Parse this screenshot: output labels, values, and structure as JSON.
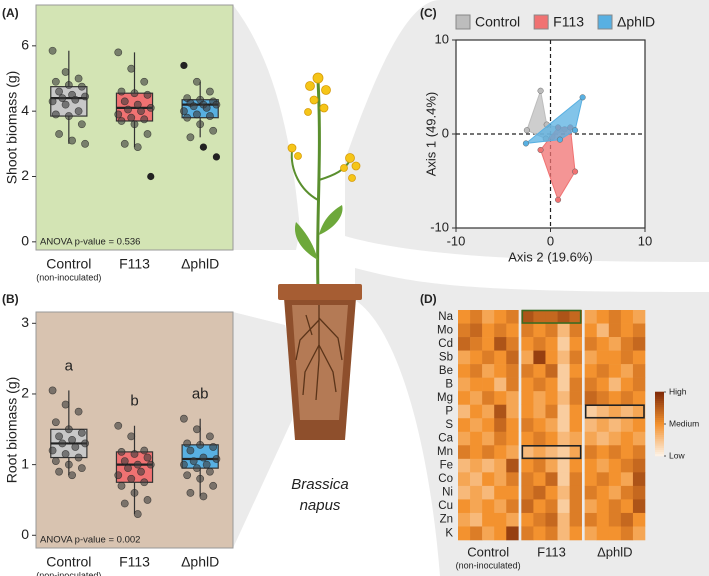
{
  "illustration": {
    "caption": [
      "Brassica",
      "napus"
    ]
  },
  "chart_data": [
    {
      "type": "box",
      "panel": "(A)",
      "ylabel": "Shoot biomass (g)",
      "categories": [
        "Control",
        "F113",
        "ΔphlD"
      ],
      "category_notes": [
        "(non-inoculated)",
        null,
        null
      ],
      "ylim": [
        -0.25,
        7.25
      ],
      "yticks": [
        0,
        2,
        4,
        6
      ],
      "background": "#d3e4b4",
      "annotation": "ANOVA p-value = 0.536",
      "boxes": [
        {
          "color": "#c8c8c8",
          "whisker_low": 3.0,
          "q1": 3.85,
          "median": 4.4,
          "q3": 4.75,
          "whisker_high": 5.85,
          "points": [
            5.85,
            5.2,
            5.0,
            4.9,
            4.8,
            4.75,
            4.6,
            4.5,
            4.45,
            4.4,
            4.35,
            4.3,
            4.2,
            4.0,
            3.9,
            3.85,
            3.6,
            3.3,
            3.1,
            3.0
          ]
        },
        {
          "color": "#f07272",
          "whisker_low": 2.9,
          "q1": 3.7,
          "median": 4.1,
          "q3": 4.55,
          "whisker_high": 5.8,
          "points": [
            5.8,
            5.3,
            4.9,
            4.6,
            4.55,
            4.5,
            4.3,
            4.2,
            4.1,
            4.05,
            4.0,
            3.9,
            3.8,
            3.75,
            3.7,
            3.6,
            3.3,
            3.0,
            2.9,
            2.0
          ]
        },
        {
          "color": "#58b0e2",
          "whisker_low": 3.2,
          "q1": 3.8,
          "median": 4.2,
          "q3": 4.35,
          "whisker_high": 4.9,
          "points": [
            5.4,
            4.9,
            4.6,
            4.4,
            4.35,
            4.3,
            4.25,
            4.2,
            4.2,
            4.15,
            4.1,
            4.0,
            3.9,
            3.85,
            3.8,
            3.6,
            3.4,
            3.2,
            2.9,
            2.6
          ]
        }
      ]
    },
    {
      "type": "box",
      "panel": "(B)",
      "ylabel": "Root biomass (g)",
      "categories": [
        "Control",
        "F113",
        "ΔphlD"
      ],
      "category_notes": [
        "(non-inoculated)",
        null,
        null
      ],
      "ylim": [
        -0.18,
        3.16
      ],
      "yticks": [
        0,
        1,
        2,
        3
      ],
      "background": "#d8c3b0",
      "annotation": "ANOVA p-value = 0.002",
      "letters": [
        "a",
        "b",
        "ab"
      ],
      "boxes": [
        {
          "color": "#c8c8c8",
          "whisker_low": 0.85,
          "q1": 1.1,
          "median": 1.3,
          "q3": 1.5,
          "whisker_high": 2.05,
          "points": [
            2.05,
            1.85,
            1.75,
            1.6,
            1.5,
            1.45,
            1.4,
            1.35,
            1.3,
            1.3,
            1.25,
            1.2,
            1.15,
            1.1,
            1.05,
            1.0,
            0.95,
            0.9,
            0.85
          ]
        },
        {
          "color": "#f07272",
          "whisker_low": 0.3,
          "q1": 0.75,
          "median": 1.0,
          "q3": 1.18,
          "whisker_high": 1.55,
          "points": [
            1.55,
            1.4,
            1.2,
            1.18,
            1.15,
            1.1,
            1.05,
            1.0,
            1.0,
            0.95,
            0.9,
            0.85,
            0.8,
            0.75,
            0.7,
            0.6,
            0.5,
            0.45,
            0.3
          ]
        },
        {
          "color": "#58b0e2",
          "whisker_low": 0.55,
          "q1": 0.95,
          "median": 1.08,
          "q3": 1.28,
          "whisker_high": 1.65,
          "points": [
            1.65,
            1.5,
            1.4,
            1.3,
            1.28,
            1.25,
            1.2,
            1.1,
            1.08,
            1.05,
            1.0,
            1.0,
            0.95,
            0.9,
            0.85,
            0.8,
            0.7,
            0.6,
            0.55
          ]
        }
      ]
    },
    {
      "type": "scatter",
      "panel": "(C)",
      "xlabel": "Axis 2 (19.6%)",
      "ylabel": "Axis 1 (49.4%)",
      "xlim": [
        -10,
        10
      ],
      "ylim": [
        -10,
        10
      ],
      "xticks": [
        -10,
        0,
        10
      ],
      "yticks": [
        -10,
        0,
        10
      ],
      "zero_lines": true,
      "series": [
        {
          "name": "Control",
          "color": "#bdbdbd",
          "x": [
            -1.05,
            -0.4,
            1.5,
            0.2,
            -0.5,
            -2.5
          ],
          "y": [
            4.6,
            1.0,
            0.5,
            -0.3,
            -0.5,
            0.4
          ]
        },
        {
          "name": "F113",
          "color": "#f07272",
          "x": [
            0.8,
            2.1,
            2.6,
            0.8,
            -1.05
          ],
          "y": [
            0.7,
            0.7,
            -4.0,
            -7.0,
            -1.7
          ]
        },
        {
          "name": "ΔphlD",
          "color": "#58b0e2",
          "x": [
            3.4,
            -2.6,
            1.0,
            2.6
          ],
          "y": [
            3.9,
            -1.0,
            -0.6,
            0.4
          ]
        }
      ]
    },
    {
      "type": "heatmap",
      "panel": "(D)",
      "rows": [
        "Na",
        "Mo",
        "Cd",
        "Sb",
        "Be",
        "B",
        "Mg",
        "P",
        "S",
        "Ca",
        "Mn",
        "Fe",
        "Co",
        "Ni",
        "Cu",
        "Zn",
        "K"
      ],
      "groups": [
        "Control",
        "F113",
        "ΔphlD"
      ],
      "group_notes": [
        "(non-inoculated)",
        null,
        null
      ],
      "zlim": [
        0,
        1
      ],
      "colors": [
        "#fdf4ea",
        "#f3922f",
        "#7f2a08"
      ],
      "colorbar_ticks": [
        {
          "value": 1,
          "label": "High"
        },
        {
          "value": 0.5,
          "label": "Medium"
        },
        {
          "value": 0,
          "label": "Low"
        }
      ],
      "highlights": [
        {
          "row": "Na",
          "group": "F113",
          "color": "#3d6b21"
        },
        {
          "row": "Mn",
          "group": "F113",
          "color": "#222222"
        },
        {
          "row": "P",
          "group": "ΔphlD",
          "color": "#222222"
        }
      ],
      "values": [
        [
          0.5,
          0.6,
          0.4,
          0.5,
          0.6,
          0.8,
          0.7,
          0.7,
          0.8,
          0.7,
          0.4,
          0.5,
          0.6,
          0.5,
          0.4
        ],
        [
          0.6,
          0.7,
          0.5,
          0.6,
          0.5,
          0.6,
          0.5,
          0.6,
          0.3,
          0.6,
          0.5,
          0.3,
          0.6,
          0.5,
          0.6
        ],
        [
          0.7,
          0.6,
          0.5,
          0.8,
          0.6,
          0.5,
          0.6,
          0.5,
          0.2,
          0.5,
          0.6,
          0.5,
          0.4,
          0.6,
          0.7
        ],
        [
          0.4,
          0.5,
          0.6,
          0.5,
          0.7,
          0.4,
          0.9,
          0.5,
          0.3,
          0.6,
          0.4,
          0.5,
          0.5,
          0.6,
          0.5
        ],
        [
          0.5,
          0.6,
          0.4,
          0.5,
          0.6,
          0.6,
          0.5,
          0.7,
          0.2,
          0.5,
          0.5,
          0.6,
          0.5,
          0.4,
          0.6
        ],
        [
          0.4,
          0.5,
          0.5,
          0.3,
          0.6,
          0.5,
          0.6,
          0.5,
          0.2,
          0.6,
          0.6,
          0.5,
          0.3,
          0.5,
          0.6
        ],
        [
          0.5,
          0.4,
          0.6,
          0.5,
          0.4,
          0.5,
          0.4,
          0.5,
          0.3,
          0.6,
          0.7,
          0.6,
          0.5,
          0.6,
          0.5
        ],
        [
          0.3,
          0.5,
          0.4,
          0.8,
          0.4,
          0.5,
          0.4,
          0.6,
          0.2,
          0.5,
          0.2,
          0.3,
          0.4,
          0.3,
          0.4
        ],
        [
          0.5,
          0.4,
          0.5,
          0.7,
          0.5,
          0.6,
          0.5,
          0.4,
          0.2,
          0.5,
          0.3,
          0.4,
          0.3,
          0.4,
          0.5
        ],
        [
          0.4,
          0.5,
          0.4,
          0.6,
          0.5,
          0.5,
          0.6,
          0.5,
          0.3,
          0.4,
          0.4,
          0.3,
          0.4,
          0.5,
          0.4
        ],
        [
          0.6,
          0.5,
          0.6,
          0.5,
          0.4,
          0.3,
          0.4,
          0.3,
          0.2,
          0.4,
          0.6,
          0.5,
          0.6,
          0.5,
          0.6
        ],
        [
          0.3,
          0.4,
          0.3,
          0.4,
          0.8,
          0.5,
          0.6,
          0.4,
          0.2,
          0.5,
          0.5,
          0.4,
          0.5,
          0.6,
          0.7
        ],
        [
          0.4,
          0.3,
          0.5,
          0.4,
          0.6,
          0.6,
          0.5,
          0.7,
          0.2,
          0.6,
          0.5,
          0.6,
          0.5,
          0.4,
          0.8
        ],
        [
          0.3,
          0.4,
          0.3,
          0.5,
          0.5,
          0.6,
          0.7,
          0.5,
          0.3,
          0.6,
          0.6,
          0.5,
          0.4,
          0.6,
          0.7
        ],
        [
          0.5,
          0.4,
          0.5,
          0.4,
          0.6,
          0.7,
          0.5,
          0.6,
          0.2,
          0.6,
          0.4,
          0.5,
          0.6,
          0.5,
          0.8
        ],
        [
          0.4,
          0.3,
          0.5,
          0.5,
          0.4,
          0.5,
          0.6,
          0.7,
          0.3,
          0.6,
          0.6,
          0.5,
          0.6,
          0.7,
          0.5
        ],
        [
          0.5,
          0.6,
          0.4,
          0.5,
          0.9,
          0.6,
          0.5,
          0.6,
          0.3,
          0.5,
          0.4,
          0.5,
          0.5,
          0.6,
          0.4
        ]
      ]
    }
  ]
}
